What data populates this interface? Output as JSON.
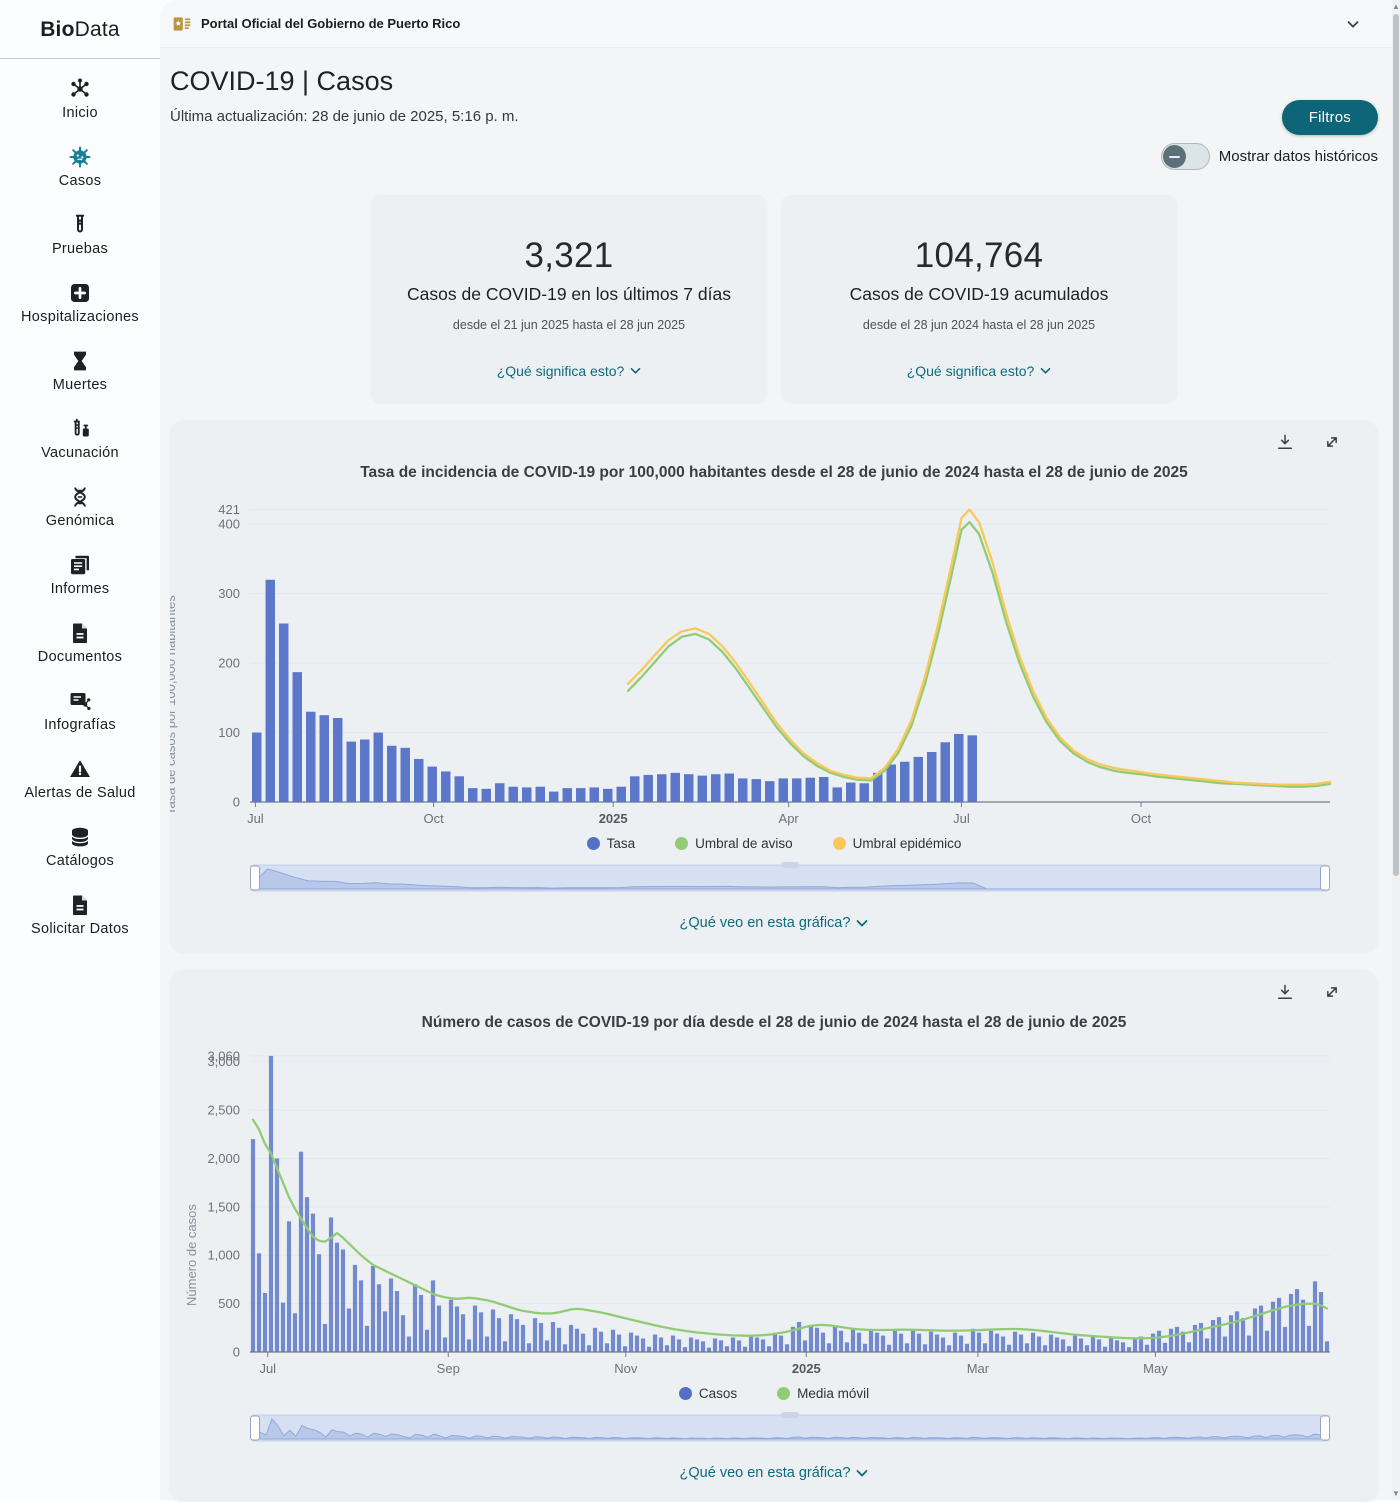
{
  "sidebar": {
    "logo": {
      "bold": "Bio",
      "rest": "Data"
    },
    "items": [
      {
        "label": "Inicio",
        "icon": "molecule-icon"
      },
      {
        "label": "Casos",
        "icon": "virus-icon",
        "active": true
      },
      {
        "label": "Pruebas",
        "icon": "test-tube-icon"
      },
      {
        "label": "Hospitalizaciones",
        "icon": "hospital-plus-icon"
      },
      {
        "label": "Muertes",
        "icon": "hourglass-icon"
      },
      {
        "label": "Vacunación",
        "icon": "syringe-icon"
      },
      {
        "label": "Genómica",
        "icon": "dna-icon"
      },
      {
        "label": "Informes",
        "icon": "report-icon"
      },
      {
        "label": "Documentos",
        "icon": "document-icon"
      },
      {
        "label": "Infografías",
        "icon": "infographic-icon"
      },
      {
        "label": "Alertas de Salud",
        "icon": "warning-icon"
      },
      {
        "label": "Catálogos",
        "icon": "database-icon"
      },
      {
        "label": "Solicitar Datos",
        "icon": "request-file-icon"
      }
    ]
  },
  "header": {
    "portal_label": "Portal Oficial del Gobierno de Puerto Rico"
  },
  "page": {
    "title": "COVID-19 | Casos",
    "last_update": "Última actualización: 28 de junio de 2025, 5:16 p. m.",
    "filters_button": "Filtros",
    "historic_toggle_label": "Mostrar datos históricos"
  },
  "stat_cards": [
    {
      "value": "3,321",
      "label": "Casos de COVID-19 en los últimos 7 días",
      "date_range": "desde el 21 jun 2025 hasta el 28 jun 2025",
      "link": "¿Qué significa esto?"
    },
    {
      "value": "104,764",
      "label": "Casos de COVID-19 acumulados",
      "date_range": "desde el 28 jun 2024 hasta el 28 jun 2025",
      "link": "¿Qué significa esto?"
    }
  ],
  "colors": {
    "accent_teal": "#0f6578",
    "link_teal": "#0c6b7d",
    "bar_blue": "#5470c6",
    "line_green": "#91cc75",
    "line_yellow": "#fac858"
  },
  "chart_data": [
    {
      "type": "bar",
      "title": "Tasa de incidencia de COVID-19 por 100,000 habitantes desde el 28 de junio de 2024 hasta el 28 de junio de 2025",
      "ylabel": "Tasa de casos por 100,000 habitantes",
      "question_link": "¿Qué veo en esta gráfica?",
      "x_domain": [
        0,
        80
      ],
      "x_unit": "weeks since 2024-06-28",
      "x_ticks": [
        {
          "label": "Jul",
          "x": 0.4
        },
        {
          "label": "Oct",
          "x": 13.6
        },
        {
          "label": "2025",
          "x": 26.9,
          "bold": true
        },
        {
          "label": "Apr",
          "x": 39.9
        },
        {
          "label": "Jul",
          "x": 52.7
        },
        {
          "label": "Oct",
          "x": 66
        }
      ],
      "y_ticks": [
        0,
        100,
        200,
        300,
        400
      ],
      "y_max_value": 421,
      "y_axis_max": 432,
      "grid": true,
      "legend_position": "bottom",
      "legend": [
        {
          "label": "Tasa",
          "color": "#5470c6"
        },
        {
          "label": "Umbral de aviso",
          "color": "#91cc75"
        },
        {
          "label": "Umbral epidémico",
          "color": "#fac858"
        }
      ],
      "bars": {
        "name": "Tasa",
        "color": "#5470c6",
        "step": 1,
        "opacity": 0.95,
        "values": [
          100,
          320,
          257,
          187,
          130,
          125,
          121,
          87,
          90,
          100,
          81,
          78,
          62,
          51,
          44,
          37,
          20,
          19,
          27,
          22,
          21,
          22,
          15,
          20,
          20,
          21,
          19,
          22,
          37,
          39,
          40,
          42,
          40,
          38,
          40,
          41,
          34,
          33,
          30,
          34,
          34,
          35,
          36,
          21,
          28,
          27,
          42,
          54,
          58,
          65,
          72,
          86,
          98,
          96
        ]
      },
      "lines": [
        {
          "name": "Umbral de aviso",
          "color": "#91cc75",
          "points": [
            [
              28,
              160
            ],
            [
              29,
              180
            ],
            [
              30,
              202
            ],
            [
              31,
              224
            ],
            [
              32,
              238
            ],
            [
              33,
              242
            ],
            [
              34,
              234
            ],
            [
              35,
              216
            ],
            [
              36,
              192
            ],
            [
              37,
              164
            ],
            [
              38,
              136
            ],
            [
              39,
              108
            ],
            [
              40,
              85
            ],
            [
              41,
              66
            ],
            [
              42,
              52
            ],
            [
              43,
              42
            ],
            [
              44,
              36
            ],
            [
              45,
              32
            ],
            [
              46,
              31
            ],
            [
              47,
              45
            ],
            [
              48,
              70
            ],
            [
              49,
              110
            ],
            [
              50,
              170
            ],
            [
              51,
              245
            ],
            [
              52,
              330
            ],
            [
              52.7,
              392
            ],
            [
              53.3,
              403
            ],
            [
              54,
              386
            ],
            [
              55,
              330
            ],
            [
              56,
              260
            ],
            [
              57,
              200
            ],
            [
              58,
              152
            ],
            [
              59,
              115
            ],
            [
              60,
              88
            ],
            [
              61,
              70
            ],
            [
              62,
              58
            ],
            [
              63,
              50
            ],
            [
              64,
              45
            ],
            [
              65,
              42
            ],
            [
              66,
              40
            ],
            [
              67,
              37
            ],
            [
              68,
              35
            ],
            [
              69,
              33
            ],
            [
              70,
              31
            ],
            [
              71,
              29
            ],
            [
              72,
              27
            ],
            [
              73,
              26
            ],
            [
              74,
              25
            ],
            [
              75,
              24
            ],
            [
              76,
              23
            ],
            [
              77,
              22
            ],
            [
              78,
              22
            ],
            [
              79,
              23
            ],
            [
              80,
              26
            ]
          ]
        },
        {
          "name": "Umbral epidémico",
          "color": "#fac858",
          "points": [
            [
              28,
              170
            ],
            [
              29,
              190
            ],
            [
              30,
              212
            ],
            [
              31,
              233
            ],
            [
              32,
              246
            ],
            [
              33,
              250
            ],
            [
              34,
              242
            ],
            [
              35,
              224
            ],
            [
              36,
              200
            ],
            [
              37,
              172
            ],
            [
              38,
              143
            ],
            [
              39,
              114
            ],
            [
              40,
              90
            ],
            [
              41,
              70
            ],
            [
              42,
              56
            ],
            [
              43,
              45
            ],
            [
              44,
              39
            ],
            [
              45,
              35
            ],
            [
              46,
              34
            ],
            [
              47,
              49
            ],
            [
              48,
              76
            ],
            [
              49,
              118
            ],
            [
              50,
              180
            ],
            [
              51,
              258
            ],
            [
              52,
              345
            ],
            [
              52.7,
              409
            ],
            [
              53.3,
              421
            ],
            [
              54,
              403
            ],
            [
              55,
              345
            ],
            [
              56,
              272
            ],
            [
              57,
              210
            ],
            [
              58,
              160
            ],
            [
              59,
              121
            ],
            [
              60,
              93
            ],
            [
              61,
              74
            ],
            [
              62,
              62
            ],
            [
              63,
              54
            ],
            [
              64,
              49
            ],
            [
              65,
              46
            ],
            [
              66,
              43
            ],
            [
              67,
              40
            ],
            [
              68,
              38
            ],
            [
              69,
              36
            ],
            [
              70,
              34
            ],
            [
              71,
              32
            ],
            [
              72,
              30
            ],
            [
              73,
              28
            ],
            [
              74,
              27
            ],
            [
              75,
              26
            ],
            [
              76,
              25
            ],
            [
              77,
              25
            ],
            [
              78,
              25
            ],
            [
              79,
              26
            ],
            [
              80,
              29
            ]
          ]
        }
      ]
    },
    {
      "type": "bar",
      "title": "Número de casos de COVID-19 por día desde el 28 de junio de 2024 hasta el 28 de junio de 2025",
      "ylabel": "Número de casos",
      "question_link": "¿Qué veo en esta gráfica?",
      "x_domain": [
        0,
        365
      ],
      "x_unit": "days since 2024-06-28",
      "x_ticks": [
        {
          "label": "Jul",
          "x": 6
        },
        {
          "label": "Sep",
          "x": 67
        },
        {
          "label": "Nov",
          "x": 127
        },
        {
          "label": "2025",
          "x": 188,
          "bold": true
        },
        {
          "label": "Mar",
          "x": 246
        },
        {
          "label": "May",
          "x": 306
        }
      ],
      "y_ticks": [
        0,
        500,
        1000,
        1500,
        2000,
        2500,
        3000
      ],
      "y_max_value": 3060,
      "y_axis_max": 3100,
      "grid": true,
      "legend_position": "bottom",
      "legend": [
        {
          "label": "Casos",
          "color": "#5470c6"
        },
        {
          "label": "Media móvil",
          "color": "#91cc75"
        }
      ],
      "bars": {
        "name": "Casos",
        "color": "#5470c6",
        "step": 2.0278,
        "opacity": 0.8,
        "values": [
          2200,
          1020,
          610,
          3060,
          2000,
          510,
          1350,
          400,
          2070,
          1600,
          1430,
          1010,
          290,
          1390,
          1130,
          1060,
          450,
          900,
          740,
          270,
          890,
          700,
          420,
          760,
          630,
          380,
          160,
          700,
          590,
          230,
          740,
          480,
          150,
          540,
          470,
          390,
          130,
          480,
          410,
          160,
          440,
          350,
          110,
          390,
          340,
          280,
          90,
          350,
          300,
          120,
          310,
          250,
          80,
          280,
          240,
          190,
          70,
          250,
          210,
          90,
          230,
          180,
          60,
          200,
          170,
          140,
          55,
          180,
          150,
          70,
          170,
          130,
          50,
          150,
          130,
          110,
          45,
          140,
          120,
          60,
          150,
          120,
          55,
          170,
          150,
          130,
          60,
          200,
          170,
          80,
          260,
          310,
          120,
          280,
          250,
          200,
          90,
          260,
          220,
          100,
          240,
          200,
          85,
          230,
          200,
          170,
          75,
          220,
          190,
          90,
          230,
          190,
          80,
          210,
          180,
          150,
          70,
          200,
          170,
          85,
          240,
          200,
          90,
          220,
          190,
          160,
          75,
          210,
          180,
          90,
          200,
          160,
          70,
          180,
          150,
          130,
          60,
          170,
          140,
          70,
          160,
          130,
          55,
          150,
          120,
          100,
          50,
          140,
          160,
          75,
          190,
          220,
          95,
          240,
          260,
          210,
          100,
          280,
          300,
          140,
          330,
          360,
          160,
          380,
          420,
          350,
          170,
          450,
          480,
          220,
          520,
          560,
          260,
          600,
          650,
          540,
          270,
          730,
          620,
          110
        ]
      },
      "lines": [
        {
          "name": "Media móvil",
          "color": "#91cc75",
          "step": 2.0278,
          "values": [
            2400,
            2300,
            2150,
            2050,
            1900,
            1750,
            1600,
            1480,
            1380,
            1280,
            1190,
            1150,
            1140,
            1180,
            1230,
            1180,
            1120,
            1060,
            1000,
            950,
            900,
            870,
            840,
            810,
            780,
            750,
            720,
            690,
            660,
            630,
            600,
            580,
            565,
            555,
            550,
            555,
            560,
            555,
            545,
            535,
            520,
            500,
            480,
            460,
            440,
            425,
            415,
            405,
            400,
            398,
            400,
            410,
            425,
            440,
            445,
            440,
            430,
            420,
            408,
            395,
            380,
            365,
            350,
            335,
            320,
            305,
            290,
            275,
            262,
            250,
            238,
            228,
            218,
            210,
            202,
            196,
            190,
            185,
            180,
            176,
            172,
            170,
            168,
            168,
            170,
            174,
            180,
            188,
            198,
            210,
            225,
            242,
            258,
            270,
            278,
            280,
            276,
            268,
            258,
            248,
            240,
            234,
            230,
            228,
            227,
            227,
            228,
            229,
            230,
            230,
            229,
            228,
            226,
            224,
            222,
            221,
            220,
            220,
            221,
            222,
            224,
            226,
            229,
            232,
            235,
            237,
            238,
            238,
            236,
            233,
            228,
            222,
            215,
            208,
            200,
            193,
            186,
            180,
            174,
            169,
            164,
            160,
            156,
            152,
            148,
            145,
            143,
            142,
            142,
            143,
            146,
            151,
            158,
            167,
            178,
            190,
            203,
            217,
            231,
            245,
            259,
            273,
            287,
            302,
            318,
            335,
            353,
            372,
            392,
            412,
            432,
            450,
            466,
            479,
            489,
            496,
            500,
            498,
            480,
            450
          ]
        }
      ]
    }
  ]
}
